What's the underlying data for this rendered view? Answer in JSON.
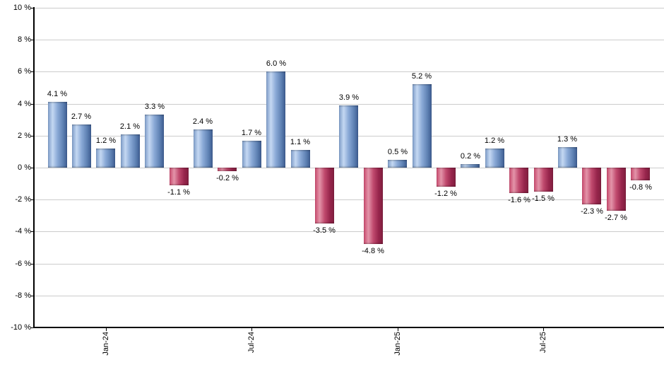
{
  "chart_data": {
    "type": "bar",
    "title": "",
    "xlabel": "",
    "ylabel": "",
    "unit": "%",
    "grid": true,
    "legend_position": "none",
    "ylim": [
      -10,
      10
    ],
    "y_step": 2,
    "values": [
      4.1,
      2.7,
      1.2,
      2.1,
      3.3,
      -1.1,
      2.4,
      -0.2,
      1.7,
      6.0,
      1.1,
      -3.5,
      3.9,
      -4.8,
      0.5,
      5.2,
      -1.2,
      0.2,
      1.2,
      -1.6,
      -1.5,
      1.3,
      -2.3,
      -2.7,
      -0.8
    ],
    "value_labels": [
      "4.1 %",
      "2.7 %",
      "1.2 %",
      "2.1 %",
      "3.3 %",
      "-1.1 %",
      "2.4 %",
      "-0.2 %",
      "1.7 %",
      "6.0 %",
      "1.1 %",
      "-3.5 %",
      "3.9 %",
      "-4.8 %",
      "0.5 %",
      "5.2 %",
      "-1.2 %",
      "0.2 %",
      "1.2 %",
      "-1.6 %",
      "-1.5 %",
      "1.3 %",
      "-2.3 %",
      "-2.7 %",
      "-0.8 %"
    ],
    "y_ticks": [
      {
        "value": 10,
        "label": "10 %"
      },
      {
        "value": 8,
        "label": "8 %"
      },
      {
        "value": 6,
        "label": "6 %"
      },
      {
        "value": 4,
        "label": "4 %"
      },
      {
        "value": 2,
        "label": "2 %"
      },
      {
        "value": 0,
        "label": "0 %"
      },
      {
        "value": -2,
        "label": "-2 %"
      },
      {
        "value": -4,
        "label": "-4 %"
      },
      {
        "value": -6,
        "label": "-6 %"
      },
      {
        "value": -8,
        "label": "-8 %"
      },
      {
        "value": -10,
        "label": "-10 %"
      }
    ],
    "x_ticks": [
      {
        "label": "Jan-24",
        "bar_index": 2
      },
      {
        "label": "Jul-24",
        "bar_index": 8
      },
      {
        "label": "Jan-25",
        "bar_index": 14
      },
      {
        "label": "Jul-25",
        "bar_index": 20
      }
    ],
    "colors": {
      "positive_gradient": [
        "#7e9cc8",
        "#c4d8f2",
        "#8aa9d6",
        "#5f82b4",
        "#3d5c90"
      ],
      "negative_gradient": [
        "#c84a6d",
        "#e394a9",
        "#c04a6e",
        "#97254c",
        "#801f3f"
      ],
      "gridline": "#cccccc",
      "axis": "#000000",
      "label": "#000000",
      "background": "#ffffff"
    }
  }
}
